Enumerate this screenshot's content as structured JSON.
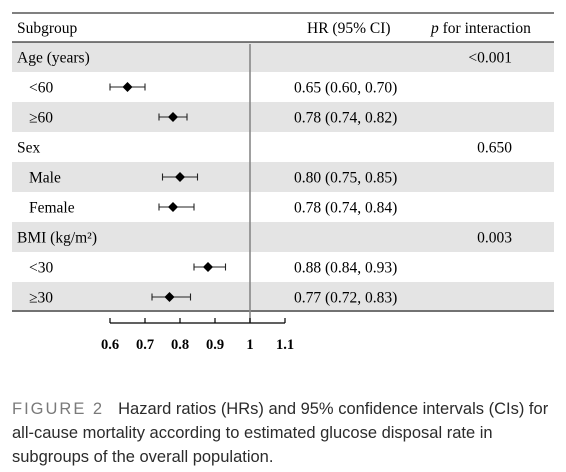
{
  "table": {
    "header_subgroup": "Subgroup",
    "header_hr": "HR (95% CI)",
    "header_p_italic": "p",
    "header_p_rest": " for interaction",
    "shade_color": "#e4e4e4",
    "rows": [
      {
        "label": "Age (years)",
        "group": true,
        "shaded": true,
        "hr": "",
        "p": "<0.001"
      },
      {
        "label": "<60",
        "group": false,
        "shaded": false,
        "hr": "0.65 (0.60, 0.70)",
        "p": ""
      },
      {
        "label": "≥60",
        "group": false,
        "shaded": true,
        "hr": "0.78 (0.74, 0.82)",
        "p": ""
      },
      {
        "label": "Sex",
        "group": true,
        "shaded": false,
        "hr": "",
        "p": "0.650"
      },
      {
        "label": "Male",
        "group": false,
        "shaded": true,
        "hr": "0.80 (0.75, 0.85)",
        "p": ""
      },
      {
        "label": "Female",
        "group": false,
        "shaded": false,
        "hr": "0.78 (0.74, 0.84)",
        "p": ""
      },
      {
        "label": "BMI (kg/m²)",
        "group": true,
        "shaded": true,
        "hr": "",
        "p": "0.003"
      },
      {
        "label": "<30",
        "group": false,
        "shaded": false,
        "hr": "0.88 (0.84, 0.93)",
        "p": ""
      },
      {
        "label": "≥30",
        "group": false,
        "shaded": true,
        "hr": "0.77 (0.72, 0.83)",
        "p": ""
      }
    ]
  },
  "chart_data": {
    "type": "forest",
    "reference_line": 1,
    "xlim": [
      0.6,
      1.1
    ],
    "xticks": [
      0.6,
      0.7,
      0.8,
      0.9,
      1,
      1.1
    ],
    "xtick_labels": [
      "0.6",
      "0.7",
      "0.8",
      "0.9",
      "1",
      "1.1"
    ],
    "points": [
      {
        "row": "<60",
        "hr": 0.65,
        "lower": 0.6,
        "upper": 0.7
      },
      {
        "row": "≥60",
        "hr": 0.78,
        "lower": 0.74,
        "upper": 0.82
      },
      {
        "row": "Male",
        "hr": 0.8,
        "lower": 0.75,
        "upper": 0.85
      },
      {
        "row": "Female",
        "hr": 0.78,
        "lower": 0.74,
        "upper": 0.84
      },
      {
        "row": "<30",
        "hr": 0.88,
        "lower": 0.84,
        "upper": 0.93
      },
      {
        "row": "≥30",
        "hr": 0.77,
        "lower": 0.72,
        "upper": 0.83
      }
    ]
  },
  "caption": {
    "label": "FIGURE 2",
    "text": "Hazard ratios (HRs) and 95% confidence intervals (CIs) for all-cause mortality according to estimated glucose disposal rate in subgroups of the overall population."
  }
}
